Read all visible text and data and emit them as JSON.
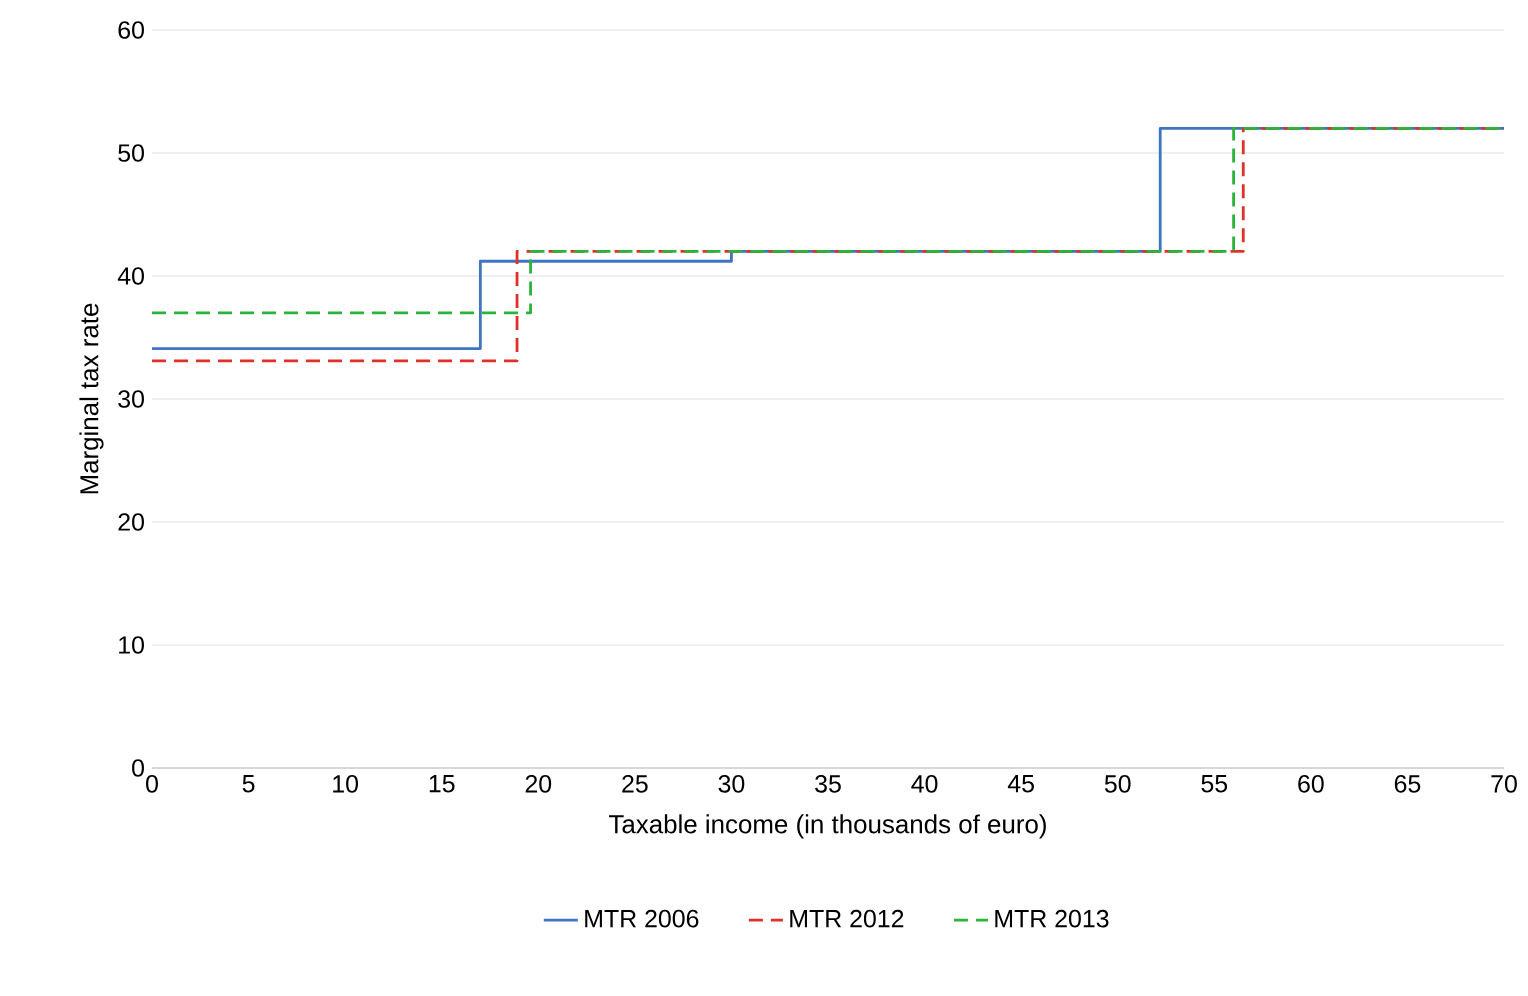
{
  "chart_data": {
    "type": "step",
    "xlabel": "Taxable income (in thousands of euro)",
    "ylabel": "Marginal tax rate",
    "xlim": [
      0,
      70
    ],
    "xticks": [
      0,
      5,
      10,
      15,
      20,
      25,
      30,
      35,
      40,
      45,
      50,
      55,
      60,
      65,
      70
    ],
    "ylim": [
      0,
      60
    ],
    "yticks": [
      0,
      10,
      20,
      30,
      40,
      50,
      60
    ],
    "grid": "y",
    "legend": "bottom",
    "series": [
      {
        "name": "MTR 2006",
        "color": "#3f74c2",
        "line_style": "solid",
        "x": [
          0,
          17,
          30,
          52.2,
          70
        ],
        "values": [
          34.1,
          41.2,
          42,
          52,
          52
        ]
      },
      {
        "name": "MTR 2012",
        "color": "#e0302a",
        "line_style": "dashed",
        "x": [
          0,
          18.9,
          56.5,
          70
        ],
        "values": [
          33.1,
          42,
          52,
          52
        ]
      },
      {
        "name": "MTR 2013",
        "color": "#2bb33a",
        "line_style": "dashed",
        "x": [
          0,
          19.6,
          56,
          70
        ],
        "values": [
          37,
          42,
          52,
          52
        ]
      }
    ]
  }
}
